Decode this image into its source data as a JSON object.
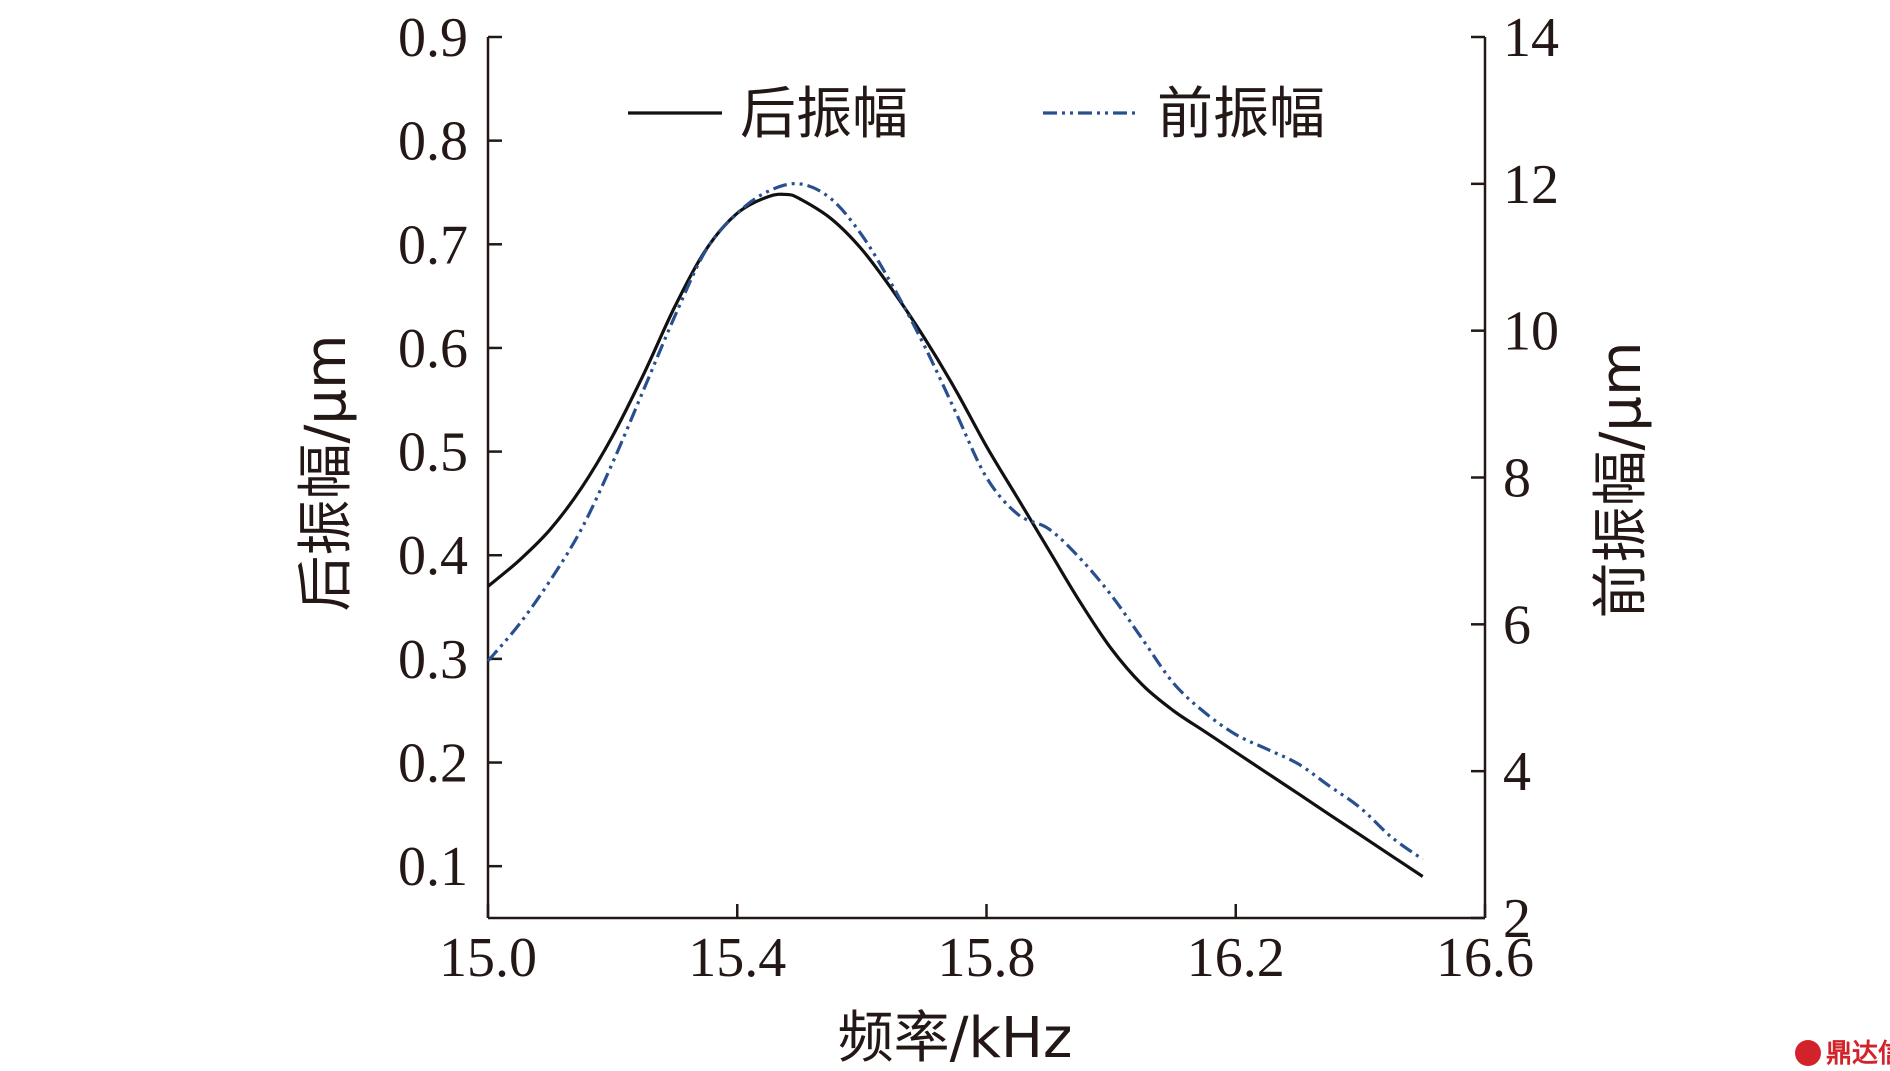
{
  "chart_data": {
    "type": "line",
    "xlabel": "频率/kHz",
    "ylabel_left": "后振幅/μm",
    "ylabel_right": "前振幅/μm",
    "xlim": [
      15.0,
      16.6
    ],
    "ylim_left": [
      0.05,
      0.9
    ],
    "ylim_right": [
      2,
      14
    ],
    "x_ticks": [
      "15.0",
      "15.4",
      "15.8",
      "16.2",
      "16.6"
    ],
    "y_left_ticks": [
      "0.1",
      "0.2",
      "0.3",
      "0.4",
      "0.5",
      "0.6",
      "0.7",
      "0.8",
      "0.9"
    ],
    "y_right_ticks": [
      "2",
      "4",
      "6",
      "8",
      "10",
      "12",
      "14"
    ],
    "legend_position": "top",
    "series": [
      {
        "name": "后振幅",
        "axis": "left",
        "color": "#111111",
        "style": "solid",
        "x": [
          15.0,
          15.05,
          15.1,
          15.15,
          15.2,
          15.25,
          15.3,
          15.35,
          15.4,
          15.45,
          15.48,
          15.5,
          15.55,
          15.6,
          15.65,
          15.7,
          15.75,
          15.8,
          15.85,
          15.9,
          15.95,
          16.0,
          16.05,
          16.1,
          16.15,
          16.2,
          16.25,
          16.3,
          16.35,
          16.4,
          16.45,
          16.5
        ],
        "y": [
          0.37,
          0.395,
          0.425,
          0.465,
          0.515,
          0.575,
          0.64,
          0.695,
          0.73,
          0.746,
          0.748,
          0.744,
          0.725,
          0.695,
          0.655,
          0.61,
          0.56,
          0.505,
          0.455,
          0.405,
          0.355,
          0.31,
          0.275,
          0.25,
          0.23,
          0.21,
          0.19,
          0.17,
          0.15,
          0.13,
          0.11,
          0.09
        ]
      },
      {
        "name": "前振幅",
        "axis": "right",
        "color": "#2a4f8f",
        "style": "dash-dot-dot",
        "x": [
          15.0,
          15.05,
          15.1,
          15.15,
          15.2,
          15.25,
          15.3,
          15.35,
          15.4,
          15.45,
          15.5,
          15.55,
          15.6,
          15.65,
          15.7,
          15.75,
          15.8,
          15.85,
          15.9,
          15.95,
          16.0,
          16.05,
          16.1,
          16.15,
          16.2,
          16.25,
          16.3,
          16.35,
          16.4,
          16.45,
          16.5
        ],
        "y": [
          5.5,
          6.0,
          6.6,
          7.3,
          8.2,
          9.2,
          10.2,
          11.1,
          11.6,
          11.9,
          12.0,
          11.8,
          11.3,
          10.6,
          9.8,
          8.9,
          8.0,
          7.5,
          7.3,
          6.9,
          6.4,
          5.8,
          5.2,
          4.8,
          4.5,
          4.3,
          4.1,
          3.8,
          3.5,
          3.1,
          2.8
        ]
      }
    ]
  },
  "watermark": {
    "text": "鼎达信"
  }
}
